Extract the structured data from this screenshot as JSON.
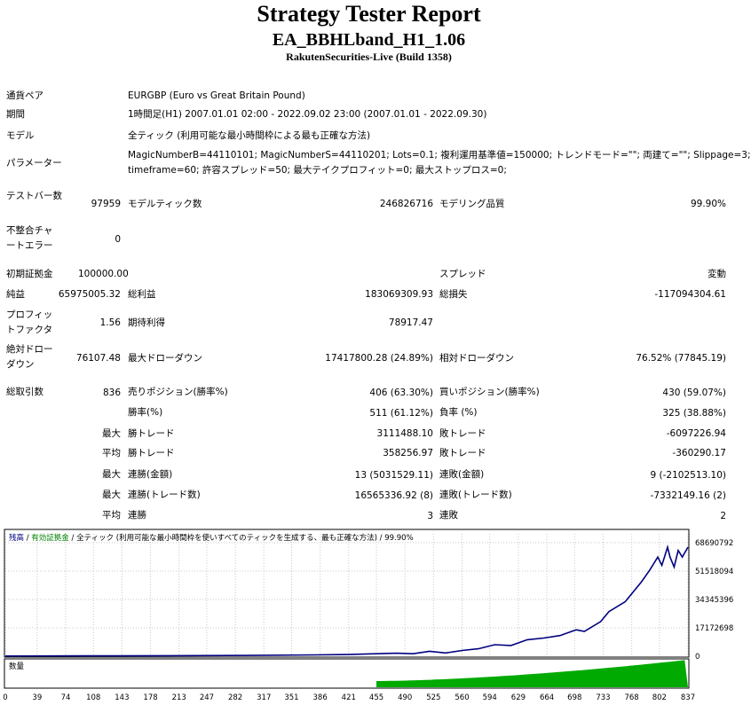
{
  "header": {
    "title": "Strategy Tester Report",
    "ea_name": "EA_BBHLband_H1_1.06",
    "server": "RakutenSecurities-Live (Build 1358)"
  },
  "info": {
    "symbol_label": "通貨ペア",
    "symbol_value": "EURGBP (Euro vs Great Britain Pound)",
    "period_label": "期間",
    "period_value": "1時間足(H1) 2007.01.01 02:00 - 2022.09.02 23:00 (2007.01.01 - 2022.09.30)",
    "model_label": "モデル",
    "model_value": "全ティック (利用可能な最小時間枠による最も正確な方法)",
    "params_label": "パラメーター",
    "params_line1": "MagicNumberB=44110101; MagicNumberS=44110201; Lots=0.1; 複利運用基準値=150000; トレンドモード=\"\"; 両建て=\"\"; Slippage=3;",
    "params_line2": "timeframe=60; 許容スプレッド=50; 最大テイクプロフィット=0; 最大ストップロス=0;"
  },
  "stats": {
    "bars_label": "テストバー数",
    "bars_value": "97959",
    "ticks_label": "モデルティック数",
    "ticks_value": "246826716",
    "quality_label": "モデリング品質",
    "quality_value": "99.90%",
    "mismatch_label": "不整合チャートエラー",
    "mismatch_value": "0",
    "deposit_label": "初期証拠金",
    "deposit_value": "100000.00",
    "spread_label": "スプレッド",
    "spread_value": "変動",
    "net_label": "純益",
    "net_value": "65975005.32",
    "gross_profit_label": "総利益",
    "gross_profit_value": "183069309.93",
    "gross_loss_label": "総損失",
    "gross_loss_value": "-117094304.61",
    "pf_label": "プロフィットファクタ",
    "pf_value": "1.56",
    "expected_label": "期待利得",
    "expected_value": "78917.47",
    "abs_dd_label": "絶対ドローダウン",
    "abs_dd_value": "76107.48",
    "max_dd_label": "最大ドローダウン",
    "max_dd_value": "17417800.28 (24.89%)",
    "rel_dd_label": "相対ドローダウン",
    "rel_dd_value": "76.52% (77845.19)",
    "total_trades_label": "総取引数",
    "total_trades_value": "836",
    "short_label": "売りポジション(勝率%)",
    "short_value": "406 (63.30%)",
    "long_label": "買いポジション(勝率%)",
    "long_value": "430 (59.07%)",
    "win_rate_label": "勝率(%)",
    "win_rate_value": "511 (61.12%)",
    "loss_rate_label": "負率 (%)",
    "loss_rate_value": "325 (38.88%)",
    "max_word": "最大",
    "avg_word": "平均",
    "max_win_label": "勝トレード",
    "max_win_value": "3111488.10",
    "max_loss_label": "敗トレード",
    "max_loss_value": "-6097226.94",
    "avg_win_label": "勝トレード",
    "avg_win_value": "358256.97",
    "avg_loss_label": "敗トレード",
    "avg_loss_value": "-360290.17",
    "max_cons_wins_amt_label": "連勝(金額)",
    "max_cons_wins_amt_value": "13 (5031529.11)",
    "max_cons_losses_amt_label": "連敗(金額)",
    "max_cons_losses_amt_value": "9 (-2102513.10)",
    "max_cons_wins_trades_label": "連勝(トレード数)",
    "max_cons_wins_trades_value": "16565336.92 (8)",
    "max_cons_losses_trades_label": "連敗(トレード数)",
    "max_cons_losses_trades_value": "-7332149.16 (2)",
    "avg_cons_wins_label": "連勝",
    "avg_cons_wins_value": "3",
    "avg_cons_losses_label": "連敗",
    "avg_cons_losses_value": "2"
  },
  "graph": {
    "legend_balance": "残高",
    "legend_sep": " / ",
    "legend_equity": "有効証拠金",
    "legend_rest": " / 全ティック (利用可能な最小時間枠を使いすべてのティックを生成する、最も正確な方法) / 99.90%",
    "volume_label": "数量",
    "balance_color": "#00007f",
    "equity_color": "#008000",
    "volume_color": "#00aa00",
    "grid_color": "#c8c8c8"
  },
  "chart_data": {
    "type": "line",
    "y_ticks": [
      "68690792",
      "51518094",
      "34345396",
      "17172698",
      "0"
    ],
    "y_tick_values": [
      68690792,
      51518094,
      34345396,
      17172698,
      0
    ],
    "x_ticks": [
      "0",
      "39",
      "74",
      "108",
      "143",
      "178",
      "213",
      "247",
      "282",
      "317",
      "351",
      "386",
      "421",
      "455",
      "490",
      "525",
      "560",
      "594",
      "629",
      "664",
      "698",
      "733",
      "768",
      "802",
      "837"
    ],
    "ylim": [
      0,
      68690792
    ],
    "series": [
      {
        "values_x": [
          0,
          100,
          200,
          300,
          380,
          420,
          455,
          480,
          500,
          520,
          540,
          560,
          580,
          600,
          620,
          640,
          660,
          680,
          700,
          710,
          730,
          740,
          760,
          780,
          790,
          800,
          805,
          812,
          815,
          820,
          825,
          830,
          837
        ],
        "values_y": [
          100000,
          200000,
          300000,
          500000,
          800000,
          1000000,
          1500000,
          1800000,
          1500000,
          3000000,
          2000000,
          3500000,
          4500000,
          7000000,
          6500000,
          10000000,
          11000000,
          12500000,
          16000000,
          15000000,
          21000000,
          27000000,
          33000000,
          45000000,
          52000000,
          60000000,
          55000000,
          66000000,
          60000000,
          54000000,
          64000000,
          60000000,
          66000000
        ]
      }
    ]
  }
}
